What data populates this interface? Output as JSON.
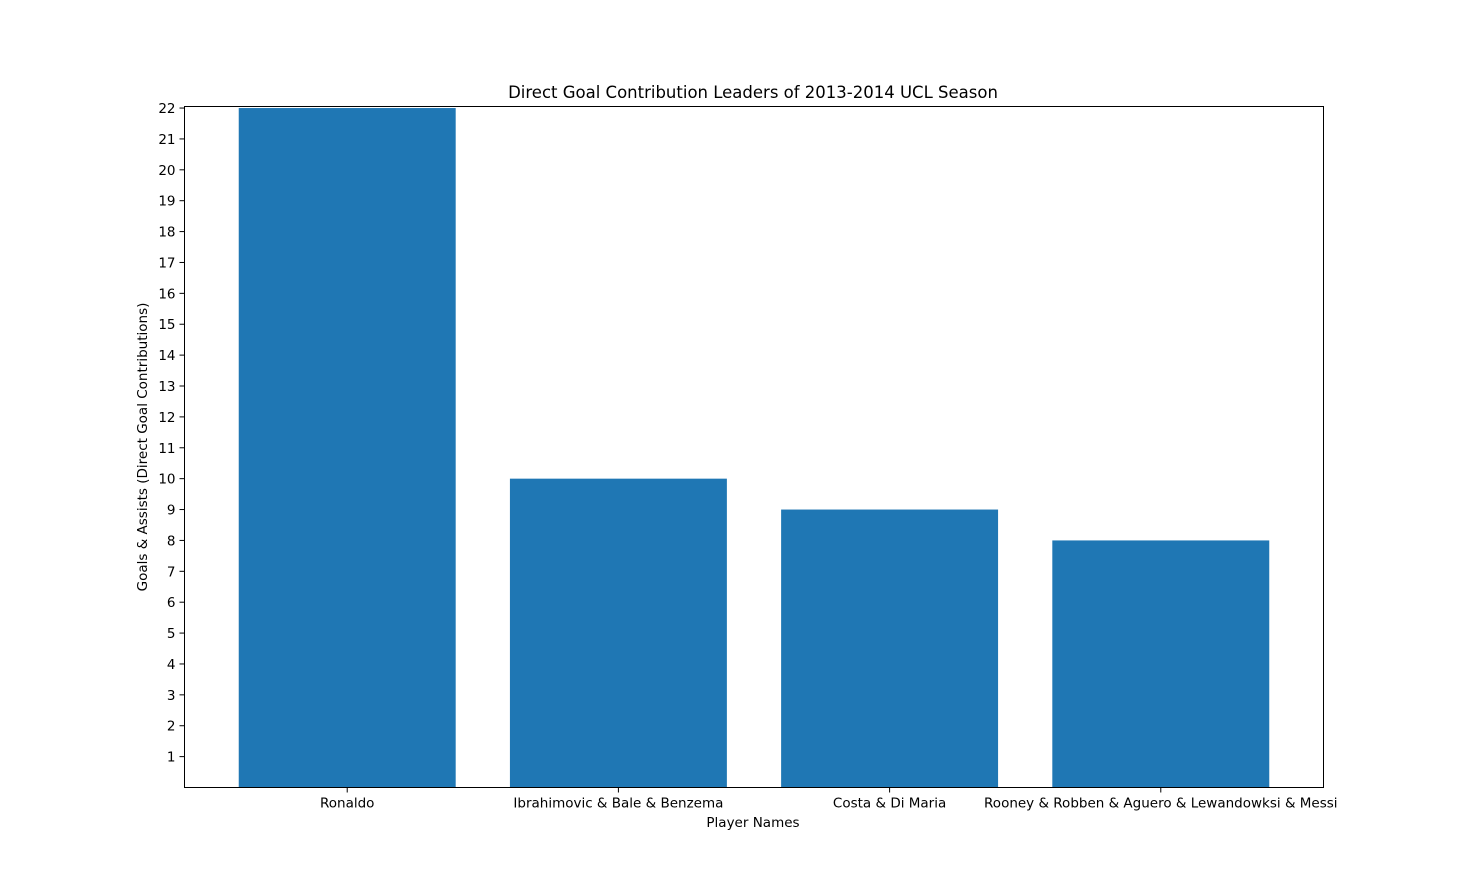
{
  "chart_data": {
    "type": "bar",
    "title": "Direct Goal Contribution Leaders of 2013-2014 UCL Season",
    "xlabel": "Player Names",
    "ylabel": "Goals & Assists (Direct Goal Contributions)",
    "categories": [
      "Ronaldo",
      "Ibrahimovic & Bale & Benzema",
      "Costa & Di Maria",
      "Rooney & Robben & Aguero & Lewandowksi & Messi"
    ],
    "values": [
      22,
      10,
      9,
      8
    ],
    "ylim": [
      0,
      22.05
    ],
    "yticks": [
      1,
      2,
      3,
      4,
      5,
      6,
      7,
      8,
      9,
      10,
      11,
      12,
      13,
      14,
      15,
      16,
      17,
      18,
      19,
      20,
      21,
      22
    ],
    "bar_color": "#1f77b4",
    "grid": false,
    "legend": "none"
  }
}
